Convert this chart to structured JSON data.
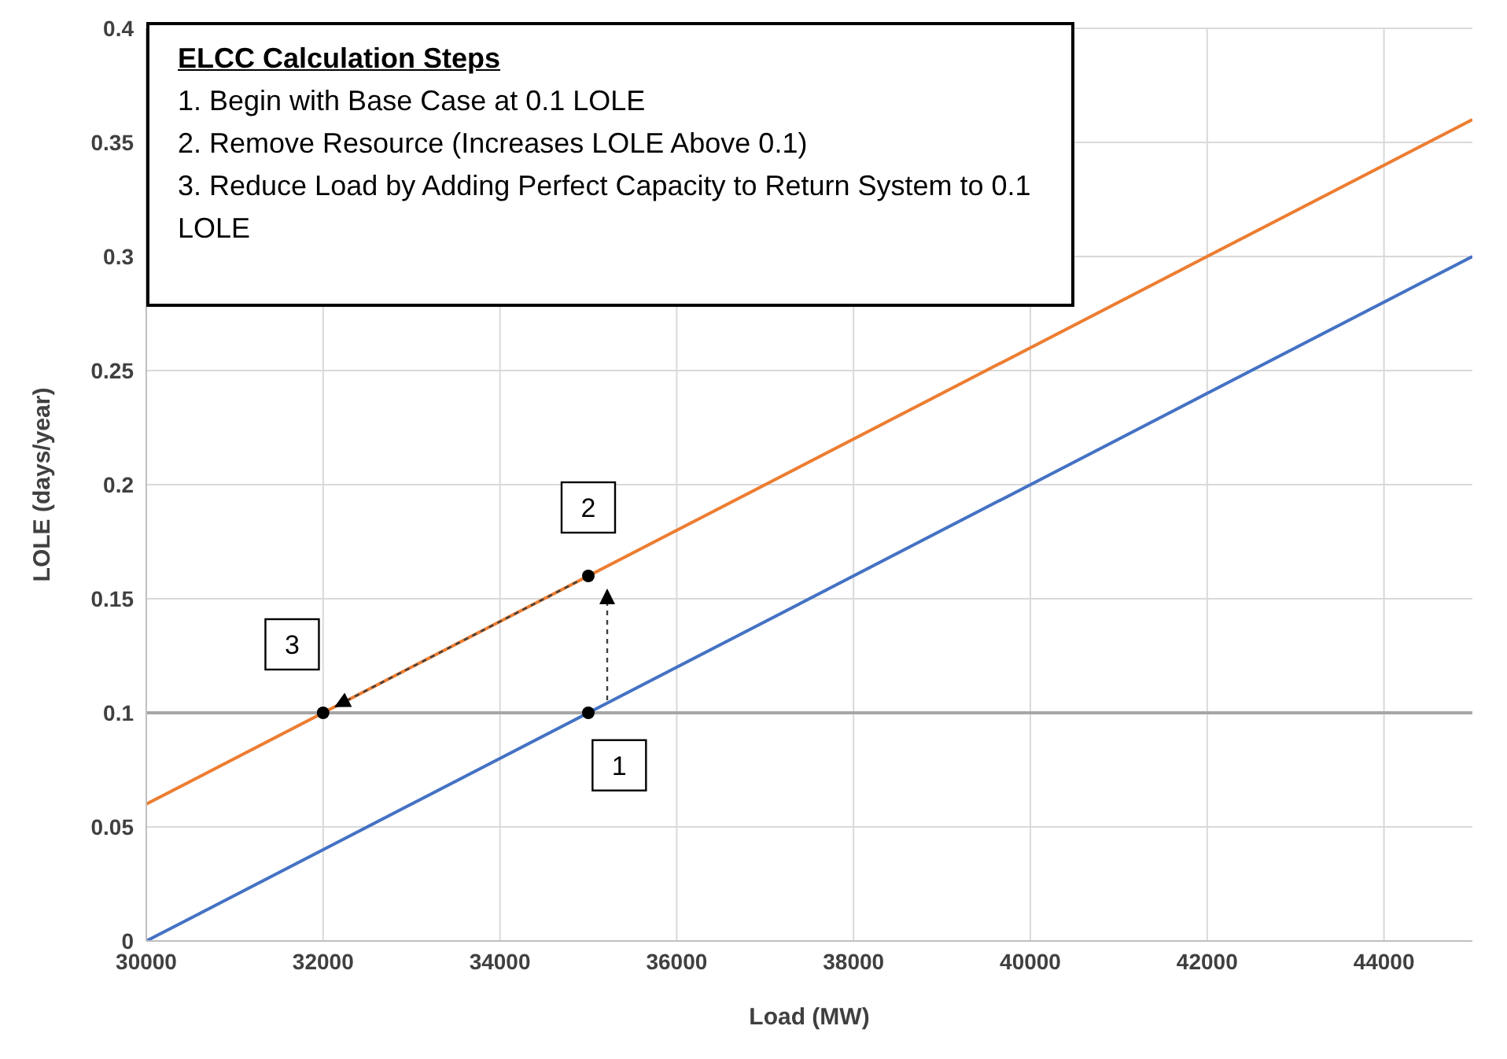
{
  "chart_data": {
    "type": "line",
    "title": "ELCC Calculation Steps",
    "xlabel": "Load (MW)",
    "ylabel": "LOLE (days/year)",
    "xlim": [
      30000,
      45000
    ],
    "xticks": [
      30000,
      32000,
      34000,
      36000,
      38000,
      40000,
      42000,
      44000
    ],
    "ylim": [
      0,
      0.4
    ],
    "yticks": [
      0,
      0.05,
      0.1,
      0.15,
      0.2,
      0.25,
      0.3,
      0.35,
      0.4
    ],
    "grid": true,
    "series": [
      {
        "color": "#4472c4",
        "x": [
          30000,
          45000
        ],
        "values": [
          0,
          0.3
        ]
      },
      {
        "color": "#ed7d31",
        "x": [
          30000,
          45000
        ],
        "values": [
          0.06,
          0.36
        ]
      },
      {
        "type": "scatter",
        "color": "#000000",
        "marker": "circle",
        "x": [
          35000,
          35000,
          32000
        ],
        "values": [
          0.1,
          0.16,
          0.1
        ]
      }
    ],
    "ref_lines": [
      {
        "axis": "y",
        "value": 0.1,
        "color": "#a6a6a6"
      }
    ],
    "annotations": [
      "1. Begin with Base Case at 0.1 LOLE",
      "2. Remove Resource (Increases  LOLE Above 0.1)",
      "3. Reduce Load by Adding Perfect Capacity to Return System to 0.1 LOLE",
      {
        "text": "1",
        "x": 35350,
        "y": 0.077
      },
      {
        "text": "2",
        "x": 35000,
        "y": 0.19
      },
      {
        "text": "3",
        "x": 31650,
        "y": 0.13
      }
    ]
  }
}
